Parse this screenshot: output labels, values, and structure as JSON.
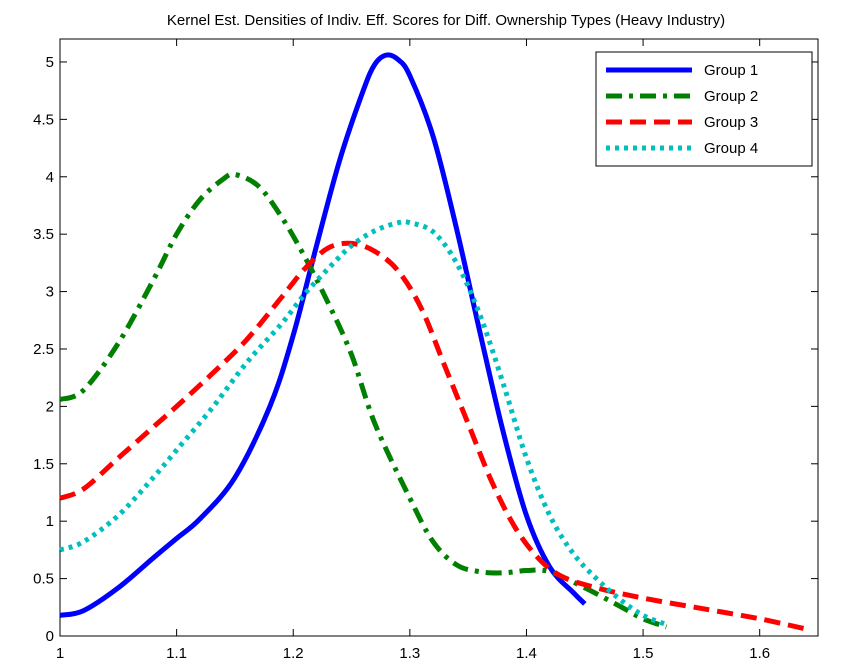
{
  "chart_data": {
    "type": "line",
    "title": "Kernel Est. Densities of Indiv. Eff. Scores for Diff. Ownership Types (Heavy Industry)",
    "xlabel": "",
    "ylabel": "",
    "xlim": [
      1,
      1.65
    ],
    "ylim": [
      0,
      5.2
    ],
    "x_ticks": [
      1,
      1.1,
      1.2,
      1.3,
      1.4,
      1.5,
      1.6
    ],
    "x_tick_labels": [
      "1",
      "1.1",
      "1.2",
      "1.3",
      "1.4",
      "1.5",
      "1.6"
    ],
    "y_ticks": [
      0,
      0.5,
      1,
      1.5,
      2,
      2.5,
      3,
      3.5,
      4,
      4.5,
      5
    ],
    "y_tick_labels": [
      "0",
      "0.5",
      "1",
      "1.5",
      "2",
      "2.5",
      "3",
      "3.5",
      "4",
      "4.5",
      "5"
    ],
    "grid": false,
    "legend_position": "top-right",
    "series": [
      {
        "name": "Group 1",
        "color": "#0000ff",
        "style": "solid",
        "x": [
          1.0,
          1.02,
          1.05,
          1.08,
          1.1,
          1.12,
          1.15,
          1.18,
          1.2,
          1.22,
          1.24,
          1.26,
          1.27,
          1.28,
          1.29,
          1.3,
          1.32,
          1.34,
          1.36,
          1.38,
          1.4,
          1.42,
          1.44,
          1.45
        ],
        "y": [
          0.18,
          0.22,
          0.42,
          0.68,
          0.85,
          1.02,
          1.38,
          2.0,
          2.62,
          3.4,
          4.15,
          4.75,
          4.98,
          5.06,
          5.02,
          4.88,
          4.35,
          3.55,
          2.65,
          1.78,
          1.05,
          0.6,
          0.38,
          0.28
        ]
      },
      {
        "name": "Group 2",
        "color": "#008000",
        "style": "dashdot",
        "x": [
          1.0,
          1.02,
          1.05,
          1.08,
          1.1,
          1.12,
          1.14,
          1.15,
          1.17,
          1.19,
          1.21,
          1.23,
          1.25,
          1.27,
          1.3,
          1.32,
          1.34,
          1.36,
          1.38,
          1.4,
          1.42,
          1.45,
          1.48,
          1.5,
          1.52
        ],
        "y": [
          2.06,
          2.14,
          2.55,
          3.1,
          3.5,
          3.8,
          3.98,
          4.02,
          3.92,
          3.65,
          3.3,
          2.9,
          2.45,
          1.85,
          1.2,
          0.82,
          0.62,
          0.56,
          0.55,
          0.57,
          0.56,
          0.42,
          0.26,
          0.15,
          0.08
        ]
      },
      {
        "name": "Group 3",
        "color": "#ff0000",
        "style": "dashed",
        "x": [
          1.0,
          1.02,
          1.05,
          1.08,
          1.1,
          1.13,
          1.16,
          1.19,
          1.21,
          1.23,
          1.25,
          1.27,
          1.29,
          1.31,
          1.33,
          1.35,
          1.37,
          1.39,
          1.41,
          1.43,
          1.46,
          1.5,
          1.55,
          1.6,
          1.64
        ],
        "y": [
          1.2,
          1.28,
          1.55,
          1.82,
          2.0,
          2.28,
          2.58,
          2.95,
          3.2,
          3.38,
          3.42,
          3.35,
          3.18,
          2.85,
          2.35,
          1.85,
          1.35,
          0.95,
          0.68,
          0.52,
          0.42,
          0.33,
          0.24,
          0.15,
          0.06
        ]
      },
      {
        "name": "Group 4",
        "color": "#00bfbf",
        "style": "dotted",
        "x": [
          1.0,
          1.02,
          1.05,
          1.08,
          1.1,
          1.13,
          1.16,
          1.19,
          1.21,
          1.23,
          1.25,
          1.27,
          1.29,
          1.3,
          1.32,
          1.34,
          1.36,
          1.38,
          1.4,
          1.42,
          1.44,
          1.46,
          1.48,
          1.5,
          1.52
        ],
        "y": [
          0.75,
          0.82,
          1.05,
          1.38,
          1.62,
          1.98,
          2.38,
          2.72,
          2.98,
          3.2,
          3.4,
          3.53,
          3.6,
          3.6,
          3.52,
          3.25,
          2.8,
          2.2,
          1.55,
          1.05,
          0.72,
          0.5,
          0.32,
          0.18,
          0.1
        ]
      }
    ]
  }
}
